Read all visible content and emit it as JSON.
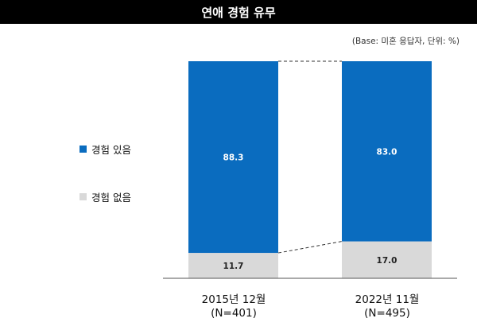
{
  "title": "연애 경험 유무",
  "note": "(Base: 미혼 응답자, 단위: %)",
  "colors": {
    "experienced": "#0a6cbf",
    "not_experienced": "#d9d9d9",
    "title_bg": "#000000"
  },
  "chart_data": {
    "type": "bar",
    "stacked": true,
    "title": "연애 경험 유무",
    "categories": [
      "2015년 12월",
      "2022년 11월"
    ],
    "category_sublabels": [
      "(N=401)",
      "(N=495)"
    ],
    "series": [
      {
        "name": "경험 있음",
        "values": [
          88.3,
          83.0
        ],
        "labels": [
          "88.3",
          "83.0"
        ],
        "color": "#0a6cbf"
      },
      {
        "name": "경험 없음",
        "values": [
          11.7,
          17.0
        ],
        "labels": [
          "11.7",
          "17.0"
        ],
        "color": "#d9d9d9"
      }
    ],
    "ylim": [
      0,
      100
    ],
    "legend": "left",
    "grid": false,
    "connector_lines": true
  }
}
